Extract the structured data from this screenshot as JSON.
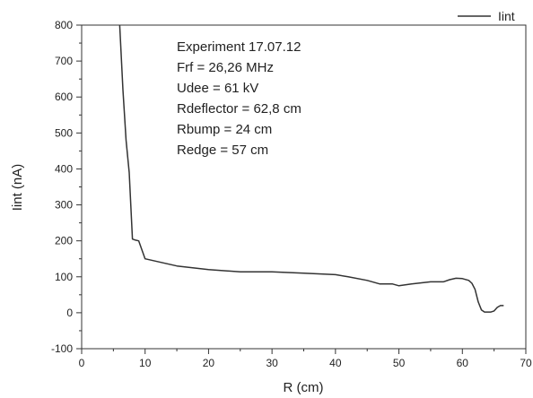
{
  "chart_data": {
    "type": "line",
    "xlabel": "R (cm)",
    "ylabel": "Iint (nA)",
    "xlim": [
      0,
      70
    ],
    "ylim": [
      -100,
      800
    ],
    "xticks": [
      0,
      10,
      20,
      30,
      40,
      50,
      60,
      70
    ],
    "yticks": [
      -100,
      0,
      100,
      200,
      300,
      400,
      500,
      600,
      700,
      800
    ],
    "grid": false,
    "legend_position": "top-right",
    "annotations": [
      "Experiment 17.07.12",
      "Frf = 26,26 MHz",
      "Udee = 61 kV",
      "Rdeflector = 62,8 cm",
      "Rbump = 24 cm",
      "Redge = 57 cm"
    ],
    "series": [
      {
        "name": "Iint",
        "color": "#333333",
        "x": [
          6.0,
          6.5,
          7.0,
          7.5,
          8.0,
          8.5,
          9.0,
          10.0,
          15.0,
          20.0,
          25.0,
          30.0,
          35.0,
          40.0,
          42.0,
          45.0,
          47.0,
          49.0,
          50.0,
          52.0,
          55.0,
          57.0,
          58.0,
          59.0,
          60.0,
          61.0,
          61.5,
          62.0,
          62.5,
          63.0,
          63.5,
          64.5,
          65.0,
          65.5,
          66.0,
          66.5
        ],
        "y": [
          800,
          620,
          480,
          390,
          205,
          202,
          200,
          150,
          130,
          120,
          114,
          114,
          110,
          106,
          100,
          90,
          80,
          80,
          75,
          80,
          86,
          86,
          92,
          96,
          95,
          90,
          82,
          65,
          30,
          8,
          2,
          2,
          5,
          15,
          20,
          20
        ]
      }
    ]
  }
}
